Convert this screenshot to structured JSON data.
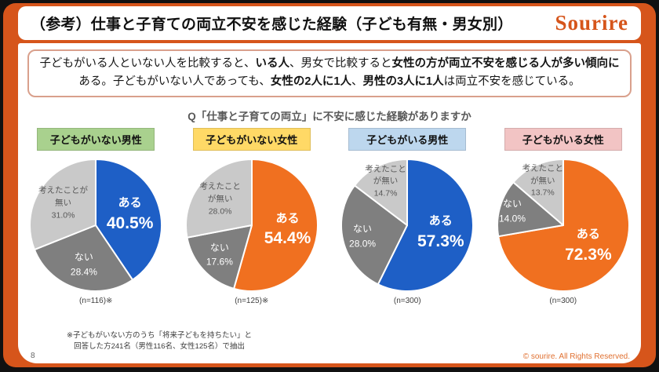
{
  "header": {
    "title": "（参考）仕事と子育ての両立不安を感じた経験（子ども有無・男女別）",
    "logo": "Sourire"
  },
  "summary": {
    "segments": [
      {
        "text": "子どもがいる人といない人を比較すると、",
        "bold": false
      },
      {
        "text": "いる人",
        "bold": true
      },
      {
        "text": "、男女で比較すると",
        "bold": false
      },
      {
        "text": "女性の方が両立不安を感じる人が多い傾向に",
        "bold": true
      },
      {
        "text": "ある。子どもがいない人であっても、",
        "bold": false
      },
      {
        "text": "女性の2人に1人",
        "bold": true
      },
      {
        "text": "、",
        "bold": false
      },
      {
        "text": "男性の3人に1人",
        "bold": true
      },
      {
        "text": "は両立不安を感じている。",
        "bold": false
      }
    ]
  },
  "question": "Q「仕事と子育ての両立」に不安に感じた経験がありますか",
  "footnote": {
    "line1": "※子どもがいない方のうち「将来子どもを持ちたい」と",
    "line2": "回答した方241名（男性116名、女性125名）で抽出"
  },
  "page": {
    "number": "8",
    "copyright": "© sourire. All Rights Reserved."
  },
  "colors": {
    "frame_orange": "#D6551B",
    "pie_blue": "#1E5FC6",
    "pie_orange": "#F07020",
    "pie_dark_gray": "#7F7F7F",
    "pie_light_gray": "#C9C9C9",
    "summary_border": "#D9A08C",
    "copyright_orange": "#E07030"
  },
  "chart_data": [
    {
      "type": "pie",
      "category": "子どもがいない男性",
      "category_color": "#A9D18E",
      "n_label": "(n=116)※",
      "slices": [
        {
          "label": "ある",
          "value": 40.5,
          "color": "#1E5FC6",
          "style": "main",
          "lines": [
            "ある",
            "40.5%"
          ],
          "lr": 0.54
        },
        {
          "label": "ない",
          "value": 28.4,
          "color": "#7F7F7F",
          "style": "light",
          "lines": [
            "ない",
            "28.4%"
          ],
          "lr": 0.62
        },
        {
          "label": "考えたことが無い",
          "value": 31.0,
          "color": "#C9C9C9",
          "style": "muted",
          "lines": [
            "考えたことが",
            "無い",
            "31.0%"
          ],
          "lr": 0.6
        }
      ]
    },
    {
      "type": "pie",
      "category": "子どもがいない女性",
      "category_color": "#FFD966",
      "n_label": "(n=125)※",
      "slices": [
        {
          "label": "ある",
          "value": 54.4,
          "color": "#F07020",
          "style": "main",
          "lines": [
            "ある",
            "54.4%"
          ],
          "lr": 0.55
        },
        {
          "label": "ない",
          "value": 17.6,
          "color": "#7F7F7F",
          "style": "light",
          "lines": [
            "ない",
            "17.6%"
          ],
          "lr": 0.66
        },
        {
          "label": "考えたことが無い",
          "value": 28.0,
          "color": "#C9C9C9",
          "style": "muted",
          "lines": [
            "考えたこと",
            "が無い",
            "28.0%"
          ],
          "lr": 0.62
        }
      ]
    },
    {
      "type": "pie",
      "category": "子どもがいる男性",
      "category_color": "#BDD7EE",
      "n_label": "(n=300)",
      "slices": [
        {
          "label": "ある",
          "value": 57.3,
          "color": "#1E5FC6",
          "style": "main",
          "lines": [
            "ある",
            "57.3%"
          ],
          "lr": 0.52
        },
        {
          "label": "ない",
          "value": 28.0,
          "color": "#7F7F7F",
          "style": "light",
          "lines": [
            "ない",
            "28.0%"
          ],
          "lr": 0.7
        },
        {
          "label": "考えたことが無い",
          "value": 14.7,
          "color": "#C9C9C9",
          "style": "muted",
          "lines": [
            "考えたこと",
            "が無い",
            "14.7%"
          ],
          "lr": 0.74
        }
      ]
    },
    {
      "type": "pie",
      "category": "子どもがいる女性",
      "category_color": "#F2C4C4",
      "n_label": "(n=300)",
      "slices": [
        {
          "label": "ある",
          "value": 72.3,
          "color": "#F07020",
          "style": "main",
          "lines": [
            "ある",
            "72.3%"
          ],
          "lr": 0.5
        },
        {
          "label": "ない",
          "value": 14.0,
          "color": "#7F7F7F",
          "style": "light",
          "lines": [
            "ない",
            "14.0%"
          ],
          "lr": 0.8
        },
        {
          "label": "考えたことが無い",
          "value": 13.7,
          "color": "#C9C9C9",
          "style": "muted",
          "lines": [
            "考えたこと",
            "が無い",
            "13.7%"
          ],
          "lr": 0.74
        }
      ]
    }
  ]
}
